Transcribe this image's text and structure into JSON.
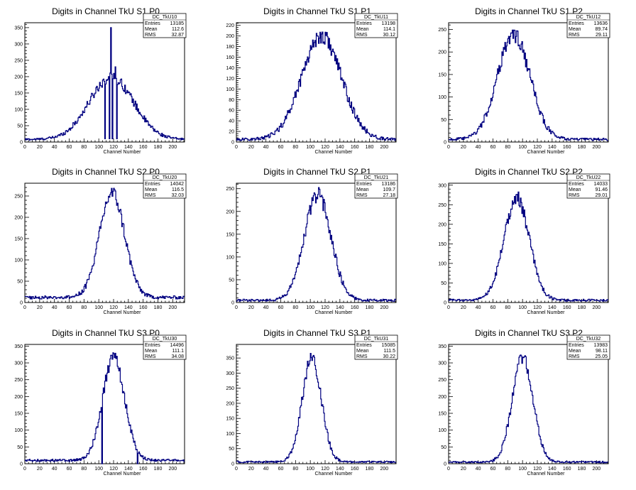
{
  "colors": {
    "histogram": "#000080",
    "frame": "#000000",
    "background": "#ffffff"
  },
  "chart_data": [
    {
      "type": "histogram",
      "title": "Digits in Channel TkU S1 P0",
      "xlabel": "Channel Number",
      "xlim": [
        0,
        216
      ],
      "ylim": [
        0,
        365
      ],
      "xticks": [
        0,
        20,
        40,
        60,
        80,
        100,
        120,
        140,
        160,
        180,
        200
      ],
      "yticks": [
        0,
        50,
        100,
        150,
        200,
        250,
        300,
        350
      ],
      "stats": {
        "name": "DC_TkU10",
        "rows": [
          [
            "Entries",
            "13185"
          ],
          [
            "Mean",
            "112.6"
          ],
          [
            "RMS",
            "32.87"
          ]
        ]
      },
      "peak": 117,
      "sigma": 30,
      "peak_height": 190,
      "baseline": 8,
      "spikes": [
        [
          108,
          10
        ],
        [
          110,
          190
        ],
        [
          113,
          200
        ],
        [
          114,
          10
        ],
        [
          116,
          350
        ],
        [
          118,
          10
        ],
        [
          120,
          210
        ],
        [
          122,
          230
        ],
        [
          124,
          10
        ]
      ]
    },
    {
      "type": "histogram",
      "title": "Digits in Channel TkU S1 P1",
      "xlabel": "Channel Number",
      "xlim": [
        0,
        216
      ],
      "ylim": [
        0,
        225
      ],
      "xticks": [
        0,
        20,
        40,
        60,
        80,
        100,
        120,
        140,
        160,
        180,
        200
      ],
      "yticks": [
        0,
        20,
        40,
        60,
        80,
        100,
        120,
        140,
        160,
        180,
        200,
        220
      ],
      "stats": {
        "name": "DC_TkU11",
        "rows": [
          [
            "Entries",
            "13198"
          ],
          [
            "Mean",
            "114.1"
          ],
          [
            "RMS",
            "30.12"
          ]
        ]
      },
      "peak": 115,
      "sigma": 27,
      "peak_height": 195,
      "baseline": 5,
      "spikes": []
    },
    {
      "type": "histogram",
      "title": "Digits in Channel TkU S1 P2",
      "xlabel": "Channel Number",
      "xlim": [
        0,
        216
      ],
      "ylim": [
        0,
        265
      ],
      "xticks": [
        0,
        20,
        40,
        60,
        80,
        100,
        120,
        140,
        160,
        180,
        200
      ],
      "yticks": [
        0,
        50,
        100,
        150,
        200,
        250
      ],
      "stats": {
        "name": "DC_TkU12",
        "rows": [
          [
            "Entries",
            "13636"
          ],
          [
            "Mean",
            "89.74"
          ],
          [
            "RMS",
            "29.11"
          ]
        ]
      },
      "peak": 88,
      "sigma": 22,
      "peak_height": 232,
      "baseline": 6,
      "spikes": []
    },
    {
      "type": "histogram",
      "title": "Digits in Channel TkU S2 P0",
      "xlabel": "Channel Number",
      "xlim": [
        0,
        216
      ],
      "ylim": [
        0,
        280
      ],
      "xticks": [
        0,
        20,
        40,
        60,
        80,
        100,
        120,
        140,
        160,
        180,
        200
      ],
      "yticks": [
        0,
        50,
        100,
        150,
        200,
        250
      ],
      "stats": {
        "name": "DC_TkU20",
        "rows": [
          [
            "Entries",
            "14042"
          ],
          [
            "Mean",
            "116.5"
          ],
          [
            "RMS",
            "32.03"
          ]
        ]
      },
      "peak": 118,
      "sigma": 17,
      "peak_height": 245,
      "baseline": 12,
      "spikes": []
    },
    {
      "type": "histogram",
      "title": "Digits in Channel TkU S2 P1",
      "xlabel": "Channel Number",
      "xlim": [
        0,
        216
      ],
      "ylim": [
        0,
        262
      ],
      "xticks": [
        0,
        20,
        40,
        60,
        80,
        100,
        120,
        140,
        160,
        180,
        200
      ],
      "yticks": [
        0,
        50,
        100,
        150,
        200,
        250
      ],
      "stats": {
        "name": "DC_TkU21",
        "rows": [
          [
            "Entries",
            "13186"
          ],
          [
            "Mean",
            "109.7"
          ],
          [
            "RMS",
            "27.18"
          ]
        ]
      },
      "peak": 110,
      "sigma": 18,
      "peak_height": 232,
      "baseline": 5,
      "spikes": []
    },
    {
      "type": "histogram",
      "title": "Digits in Channel TkU S2 P2",
      "xlabel": "Channel Number",
      "xlim": [
        0,
        216
      ],
      "ylim": [
        0,
        305
      ],
      "xticks": [
        0,
        20,
        40,
        60,
        80,
        100,
        120,
        140,
        160,
        180,
        200
      ],
      "yticks": [
        0,
        50,
        100,
        150,
        200,
        250,
        300
      ],
      "stats": {
        "name": "DC_TkU22",
        "rows": [
          [
            "Entries",
            "14033"
          ],
          [
            "Mean",
            "91.46"
          ],
          [
            "RMS",
            "29.01"
          ]
        ]
      },
      "peak": 92,
      "sigma": 17,
      "peak_height": 262,
      "baseline": 6,
      "spikes": []
    },
    {
      "type": "histogram",
      "title": "Digits in Channel TkU S3 P0",
      "xlabel": "Channel Number",
      "xlim": [
        0,
        216
      ],
      "ylim": [
        0,
        355
      ],
      "xticks": [
        0,
        20,
        40,
        60,
        80,
        100,
        120,
        140,
        160,
        180,
        200
      ],
      "yticks": [
        0,
        50,
        100,
        150,
        200,
        250,
        300,
        350
      ],
      "stats": {
        "name": "DC_TkU30",
        "rows": [
          [
            "Entries",
            "14496"
          ],
          [
            "Mean",
            "111.1"
          ],
          [
            "RMS",
            "34.08"
          ]
        ]
      },
      "peak": 120,
      "sigma": 15,
      "peak_height": 305,
      "baseline": 10,
      "spikes": [
        [
          104,
          0
        ],
        [
          152,
          0
        ]
      ]
    },
    {
      "type": "histogram",
      "title": "Digits in Channel TkU S3 P1",
      "xlabel": "Channel Number",
      "xlim": [
        0,
        216
      ],
      "ylim": [
        0,
        395
      ],
      "xticks": [
        0,
        20,
        40,
        60,
        80,
        100,
        120,
        140,
        160,
        180,
        200
      ],
      "yticks": [
        0,
        50,
        100,
        150,
        200,
        250,
        300,
        350
      ],
      "stats": {
        "name": "DC_TkU31",
        "rows": [
          [
            "Entries",
            "15085"
          ],
          [
            "Mean",
            "111.5"
          ],
          [
            "RMS",
            "30.22"
          ]
        ]
      },
      "peak": 102,
      "sigma": 13,
      "peak_height": 345,
      "baseline": 6,
      "spikes": []
    },
    {
      "type": "histogram",
      "title": "Digits in Channel TkU S3 P2",
      "xlabel": "Channel Number",
      "xlim": [
        0,
        216
      ],
      "ylim": [
        0,
        355
      ],
      "xticks": [
        0,
        20,
        40,
        60,
        80,
        100,
        120,
        140,
        160,
        180,
        200
      ],
      "yticks": [
        0,
        50,
        100,
        150,
        200,
        250,
        300,
        350
      ],
      "stats": {
        "name": "DC_TkU32",
        "rows": [
          [
            "Entries",
            "13983"
          ],
          [
            "Mean",
            "98.11"
          ],
          [
            "RMS",
            "25.05"
          ]
        ]
      },
      "peak": 100,
      "sigma": 14,
      "peak_height": 310,
      "baseline": 5,
      "spikes": []
    }
  ]
}
